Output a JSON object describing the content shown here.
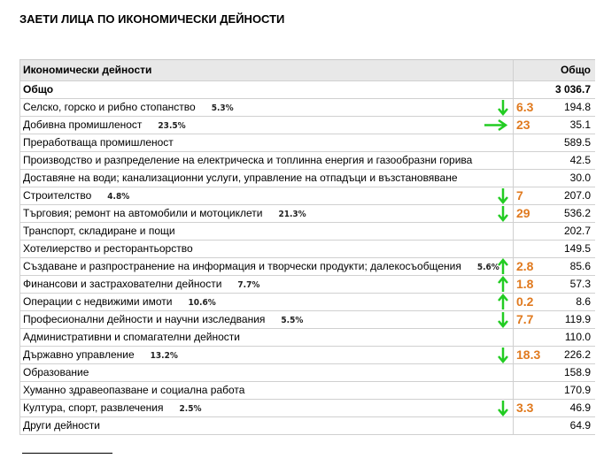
{
  "title": "ЗАЕТИ ЛИЦА ПО ИКОНОМИЧЕСКИ ДЕЙНОСТИ",
  "table": {
    "header": [
      "Икономически дейности",
      "Общо"
    ],
    "rows": [
      {
        "label": "Общо",
        "value": "3 036.7",
        "bold": true
      },
      {
        "label": "Селско, горско и рибно стопанство",
        "value": "194.8",
        "note": "5.3%",
        "change": "6.3",
        "arrow": "down"
      },
      {
        "label": "Добивна промишленост",
        "value": "35.1",
        "note": "23.5%",
        "change": "23",
        "arrow": "right"
      },
      {
        "label": "Преработваща промишленост",
        "value": "589.5"
      },
      {
        "label": "Производство и разпределение на електрическа и топлинна енергия и газообразни горива",
        "value": "42.5"
      },
      {
        "label": "Доставяне на води; канализационни услуги, управление на отпадъци и възстановяване",
        "value": "30.0"
      },
      {
        "label": "Строителство",
        "value": "207.0",
        "note": "4.8%",
        "change": "7",
        "arrow": "down"
      },
      {
        "label": "Търговия; ремонт на автомобили и мотоциклети",
        "value": "536.2",
        "note": "21.3%",
        "change": "29",
        "arrow": "down"
      },
      {
        "label": "Транспорт, складиране и пощи",
        "value": "202.7"
      },
      {
        "label": "Хотелиерство и ресторантьорство",
        "value": "149.5"
      },
      {
        "label": "Създаване и разпространение на информация и творчески продукти; далекосъобщения",
        "value": "85.6",
        "note": "5.6%",
        "change": "2.8",
        "arrow": "up"
      },
      {
        "label": "Финансови и застрахователни дейности",
        "value": "57.3",
        "note": "7.7%",
        "change": "1.8",
        "arrow": "up"
      },
      {
        "label": "Операции с недвижими имоти",
        "value": "8.6",
        "note": "10.6%",
        "change": "0.2",
        "arrow": "up"
      },
      {
        "label": "Професионални дейности и научни изследвания",
        "value": "119.9",
        "note": "5.5%",
        "change": "7.7",
        "arrow": "down"
      },
      {
        "label": "Административни и спомагателни дейности",
        "value": "110.0"
      },
      {
        "label": "Държавно управление",
        "value": "226.2",
        "note": "13.2%",
        "change": "18.3",
        "arrow": "down"
      },
      {
        "label": "Образование",
        "value": "158.9"
      },
      {
        "label": "Хуманно здравеопазване и социална работа",
        "value": "170.9"
      },
      {
        "label": "Култура, спорт, развлечения",
        "value": "46.9",
        "note": "2.5%",
        "change": "3.3",
        "arrow": "down"
      },
      {
        "label": "Други дейности",
        "value": "64.9"
      }
    ]
  }
}
